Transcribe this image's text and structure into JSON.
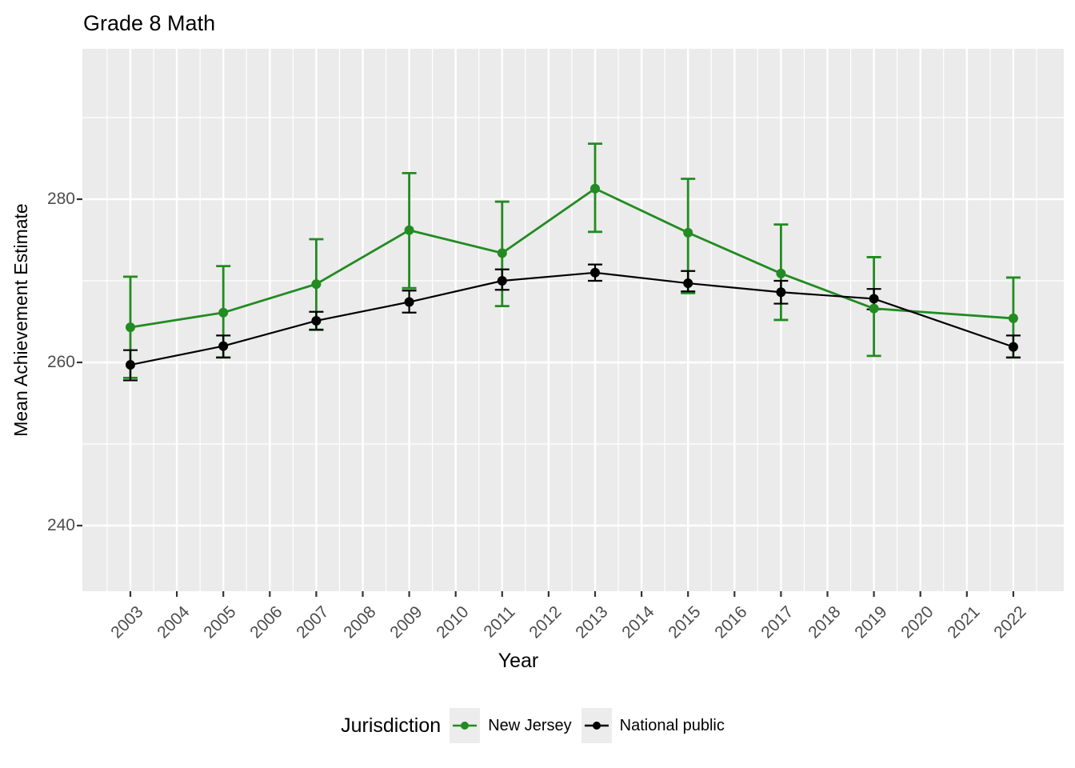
{
  "title": "Grade 8 Math",
  "axes": {
    "x_title": "Year",
    "y_title": "Mean Achievement Estimate",
    "x_tick_years": [
      2003,
      2004,
      2005,
      2006,
      2007,
      2008,
      2009,
      2010,
      2011,
      2012,
      2013,
      2014,
      2015,
      2016,
      2017,
      2018,
      2019,
      2020,
      2021,
      2022
    ],
    "y_tick_values": [
      240,
      260,
      280
    ],
    "y_tick_labels": [
      "240",
      "260",
      "280"
    ],
    "y_minor_values": [
      250,
      270,
      290
    ]
  },
  "legend": {
    "title": "Jurisdiction",
    "entries": [
      {
        "label": "New Jersey",
        "color": "#228B22"
      },
      {
        "label": "National public",
        "color": "#000000"
      }
    ]
  },
  "colors": {
    "panel_background": "#ebebeb",
    "gridline": "#ffffff",
    "tick_mark": "#333333",
    "tick_label": "#4d4d4d",
    "new_jersey": "#228B22",
    "national_public": "#000000"
  },
  "chart_data": {
    "type": "line",
    "title": "Grade 8 Math",
    "xlabel": "Year",
    "ylabel": "Mean Achievement Estimate",
    "x": [
      2003,
      2005,
      2007,
      2009,
      2011,
      2013,
      2015,
      2017,
      2019,
      2022
    ],
    "xlim": [
      2002.3,
      2023.1
    ],
    "ylim": [
      232,
      298
    ],
    "x_axis_tick_labels": [
      2003,
      2004,
      2005,
      2006,
      2007,
      2008,
      2009,
      2010,
      2011,
      2012,
      2013,
      2014,
      2015,
      2016,
      2017,
      2018,
      2019,
      2020,
      2021,
      2022
    ],
    "y_axis_tick_labels": [
      240,
      260,
      280
    ],
    "grid": true,
    "error_bars": true,
    "legend_position": "bottom",
    "legend_title": "Jurisdiction",
    "series": [
      {
        "name": "New Jersey",
        "color": "#228B22",
        "values": [
          264.3,
          266.1,
          269.6,
          276.2,
          273.4,
          281.3,
          275.9,
          270.9,
          266.6,
          265.4
        ],
        "ci_low": [
          258.1,
          260.6,
          264.0,
          269.1,
          266.9,
          276.0,
          268.5,
          265.2,
          260.8,
          260.6
        ],
        "ci_high": [
          270.5,
          271.8,
          275.1,
          283.2,
          279.7,
          286.8,
          282.5,
          276.9,
          272.9,
          270.4
        ]
      },
      {
        "name": "National public",
        "color": "#000000",
        "values": [
          259.7,
          262.0,
          265.1,
          267.4,
          270.0,
          271.0,
          269.7,
          268.6,
          267.8,
          261.9
        ],
        "ci_low": [
          257.8,
          260.6,
          264.0,
          266.1,
          268.9,
          270.0,
          268.7,
          267.2,
          266.5,
          260.6
        ],
        "ci_high": [
          261.5,
          263.3,
          266.2,
          268.8,
          271.4,
          272.0,
          271.2,
          270.0,
          269.0,
          263.3
        ]
      }
    ]
  }
}
